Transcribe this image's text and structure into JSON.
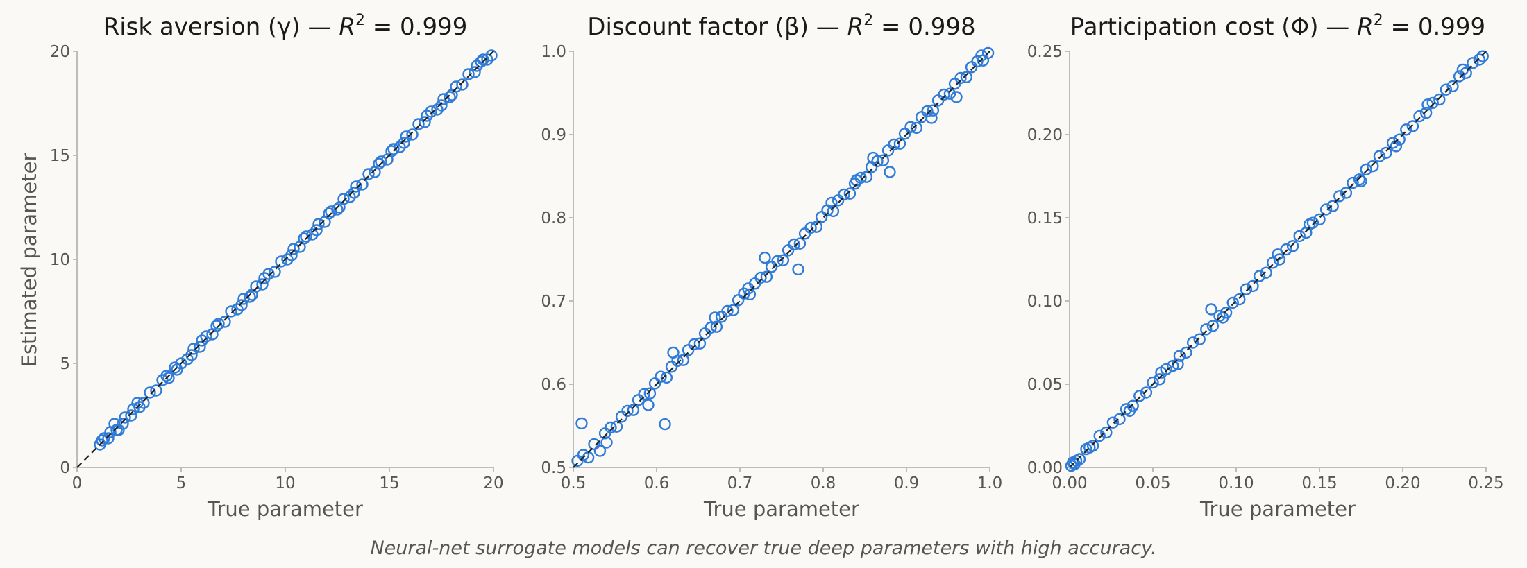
{
  "figure": {
    "caption": "Neural-net surrogate models can recover true deep parameters with high accuracy.",
    "marker_color": "#2f7bd8",
    "identity_line_color": "#222222",
    "background": "#faf9f6"
  },
  "chart_data": [
    {
      "type": "scatter",
      "title_main": "Risk aversion (γ) — ",
      "r2_label": "R",
      "r2_sup": "2",
      "r2_value": " = 0.999",
      "xlabel": "True parameter",
      "ylabel": "Estimated parameter",
      "xlim": [
        0,
        20
      ],
      "ylim": [
        0,
        20
      ],
      "xticks": [
        0,
        5,
        10,
        15,
        20
      ],
      "yticks": [
        0,
        5,
        10,
        15,
        20
      ],
      "xtick_labels": [
        "0",
        "5",
        "10",
        "15",
        "20"
      ],
      "ytick_labels": [
        "0",
        "5",
        "10",
        "15",
        "20"
      ],
      "identity_line": true,
      "grid": false,
      "x": [
        1.1,
        1.3,
        1.5,
        1.8,
        2.0,
        2.3,
        2.6,
        2.9,
        3.2,
        3.5,
        3.8,
        4.1,
        4.4,
        4.7,
        5.0,
        5.3,
        5.6,
        5.9,
        6.2,
        6.5,
        6.8,
        7.1,
        7.4,
        7.7,
        8.0,
        8.3,
        8.6,
        8.9,
        9.2,
        9.5,
        9.8,
        10.1,
        10.4,
        10.7,
        11.0,
        11.3,
        11.6,
        11.9,
        12.2,
        12.5,
        12.8,
        13.1,
        13.4,
        13.7,
        14.0,
        14.3,
        14.6,
        14.9,
        15.2,
        15.5,
        15.8,
        16.1,
        16.4,
        16.7,
        17.0,
        17.3,
        17.6,
        17.9,
        18.2,
        18.5,
        18.8,
        19.1,
        19.4,
        19.7,
        1.6,
        2.2,
        3.0,
        4.3,
        5.5,
        6.7,
        7.9,
        9.0,
        10.3,
        11.5,
        12.1,
        13.3,
        14.5,
        15.7,
        16.8,
        18.0,
        19.2,
        19.9,
        1.2,
        1.9,
        2.7,
        4.8,
        6.0,
        8.4,
        10.9,
        12.6,
        15.1,
        17.5,
        19.5
      ],
      "y": [
        1.1,
        1.4,
        1.4,
        2.1,
        1.8,
        2.4,
        2.5,
        3.1,
        3.1,
        3.6,
        3.7,
        4.2,
        4.3,
        4.8,
        5.0,
        5.2,
        5.7,
        5.8,
        6.3,
        6.4,
        6.9,
        7.0,
        7.5,
        7.6,
        8.1,
        8.2,
        8.7,
        8.8,
        9.3,
        9.4,
        9.9,
        10.0,
        10.5,
        10.6,
        11.1,
        11.2,
        11.7,
        11.8,
        12.3,
        12.4,
        12.9,
        13.0,
        13.5,
        13.6,
        14.1,
        14.2,
        14.7,
        14.8,
        15.3,
        15.4,
        15.9,
        16.0,
        16.5,
        16.6,
        17.1,
        17.2,
        17.7,
        17.8,
        18.3,
        18.4,
        18.9,
        19.0,
        19.5,
        19.6,
        1.7,
        2.1,
        2.9,
        4.4,
        5.4,
        6.8,
        7.8,
        9.1,
        10.2,
        11.4,
        12.2,
        13.2,
        14.6,
        15.6,
        16.9,
        17.9,
        19.3,
        19.8,
        1.3,
        1.8,
        2.8,
        4.7,
        6.1,
        8.3,
        11.0,
        12.5,
        15.2,
        17.4,
        19.6
      ]
    },
    {
      "type": "scatter",
      "title_main": "Discount factor (β) — ",
      "r2_label": "R",
      "r2_sup": "2",
      "r2_value": " = 0.998",
      "xlabel": "True parameter",
      "ylabel": "",
      "xlim": [
        0.5,
        1.0
      ],
      "ylim": [
        0.5,
        1.0
      ],
      "xticks": [
        0.5,
        0.6,
        0.7,
        0.8,
        0.9,
        1.0
      ],
      "yticks": [
        0.5,
        0.6,
        0.7,
        0.8,
        0.9,
        1.0
      ],
      "xtick_labels": [
        "0.5",
        "0.6",
        "0.7",
        "0.8",
        "0.9",
        "1.0"
      ],
      "ytick_labels": [
        "0.5",
        "0.6",
        "0.7",
        "0.8",
        "0.9",
        "1.0"
      ],
      "identity_line": true,
      "grid": false,
      "x": [
        0.505,
        0.512,
        0.518,
        0.525,
        0.532,
        0.538,
        0.545,
        0.552,
        0.558,
        0.565,
        0.572,
        0.578,
        0.585,
        0.592,
        0.598,
        0.605,
        0.612,
        0.618,
        0.625,
        0.632,
        0.638,
        0.645,
        0.652,
        0.658,
        0.665,
        0.672,
        0.678,
        0.685,
        0.692,
        0.698,
        0.705,
        0.712,
        0.718,
        0.725,
        0.732,
        0.738,
        0.745,
        0.752,
        0.758,
        0.765,
        0.772,
        0.778,
        0.785,
        0.792,
        0.798,
        0.805,
        0.812,
        0.818,
        0.825,
        0.832,
        0.838,
        0.845,
        0.852,
        0.858,
        0.865,
        0.872,
        0.878,
        0.885,
        0.892,
        0.898,
        0.905,
        0.912,
        0.918,
        0.925,
        0.932,
        0.938,
        0.945,
        0.952,
        0.958,
        0.965,
        0.972,
        0.978,
        0.985,
        0.992,
        0.998,
        0.51,
        0.61,
        0.62,
        0.77,
        0.88,
        0.96,
        0.54,
        0.59,
        0.67,
        0.71,
        0.73,
        0.81,
        0.84,
        0.86,
        0.93,
        0.99
      ],
      "y": [
        0.508,
        0.515,
        0.512,
        0.528,
        0.52,
        0.541,
        0.548,
        0.549,
        0.561,
        0.568,
        0.569,
        0.581,
        0.588,
        0.589,
        0.601,
        0.609,
        0.608,
        0.621,
        0.628,
        0.629,
        0.641,
        0.648,
        0.649,
        0.661,
        0.668,
        0.669,
        0.681,
        0.688,
        0.689,
        0.701,
        0.709,
        0.708,
        0.721,
        0.728,
        0.729,
        0.741,
        0.748,
        0.749,
        0.761,
        0.768,
        0.769,
        0.781,
        0.788,
        0.789,
        0.801,
        0.809,
        0.808,
        0.821,
        0.828,
        0.829,
        0.841,
        0.848,
        0.849,
        0.861,
        0.868,
        0.869,
        0.881,
        0.888,
        0.889,
        0.901,
        0.909,
        0.908,
        0.921,
        0.928,
        0.929,
        0.941,
        0.948,
        0.949,
        0.961,
        0.968,
        0.969,
        0.981,
        0.988,
        0.989,
        0.998,
        0.553,
        0.552,
        0.638,
        0.738,
        0.855,
        0.945,
        0.53,
        0.575,
        0.68,
        0.715,
        0.752,
        0.818,
        0.845,
        0.872,
        0.92,
        0.995
      ]
    },
    {
      "type": "scatter",
      "title_main": "Participation cost (Φ) — ",
      "r2_label": "R",
      "r2_sup": "2",
      "r2_value": " = 0.999",
      "xlabel": "True parameter",
      "ylabel": "",
      "xlim": [
        0.0,
        0.25
      ],
      "ylim": [
        0.0,
        0.25
      ],
      "xticks": [
        0.0,
        0.05,
        0.1,
        0.15,
        0.2,
        0.25
      ],
      "yticks": [
        0.0,
        0.05,
        0.1,
        0.15,
        0.2,
        0.25
      ],
      "xtick_labels": [
        "0.00",
        "0.05",
        "0.10",
        "0.15",
        "0.20",
        "0.25"
      ],
      "ytick_labels": [
        "0.00",
        "0.05",
        "0.10",
        "0.15",
        "0.20",
        "0.25"
      ],
      "identity_line": true,
      "grid": false,
      "x": [
        0.001,
        0.002,
        0.003,
        0.004,
        0.006,
        0.01,
        0.014,
        0.018,
        0.022,
        0.026,
        0.03,
        0.034,
        0.038,
        0.042,
        0.046,
        0.05,
        0.054,
        0.058,
        0.062,
        0.066,
        0.07,
        0.074,
        0.078,
        0.082,
        0.086,
        0.09,
        0.094,
        0.098,
        0.102,
        0.106,
        0.11,
        0.114,
        0.118,
        0.122,
        0.126,
        0.13,
        0.134,
        0.138,
        0.142,
        0.146,
        0.15,
        0.154,
        0.158,
        0.162,
        0.166,
        0.17,
        0.174,
        0.178,
        0.182,
        0.186,
        0.19,
        0.194,
        0.198,
        0.202,
        0.206,
        0.21,
        0.214,
        0.218,
        0.222,
        0.226,
        0.23,
        0.234,
        0.238,
        0.242,
        0.246,
        0.248,
        0.012,
        0.085,
        0.055,
        0.065,
        0.125,
        0.175,
        0.215,
        0.036,
        0.092,
        0.144,
        0.196,
        0.236
      ],
      "y": [
        0.001,
        0.003,
        0.002,
        0.004,
        0.005,
        0.011,
        0.013,
        0.019,
        0.021,
        0.027,
        0.029,
        0.035,
        0.037,
        0.043,
        0.045,
        0.051,
        0.053,
        0.059,
        0.061,
        0.067,
        0.069,
        0.075,
        0.077,
        0.083,
        0.085,
        0.091,
        0.093,
        0.099,
        0.101,
        0.107,
        0.109,
        0.115,
        0.117,
        0.123,
        0.125,
        0.131,
        0.133,
        0.139,
        0.141,
        0.147,
        0.149,
        0.155,
        0.157,
        0.163,
        0.165,
        0.171,
        0.173,
        0.179,
        0.181,
        0.187,
        0.189,
        0.195,
        0.197,
        0.203,
        0.205,
        0.211,
        0.213,
        0.219,
        0.221,
        0.227,
        0.229,
        0.235,
        0.237,
        0.243,
        0.245,
        0.247,
        0.012,
        0.095,
        0.057,
        0.062,
        0.128,
        0.172,
        0.218,
        0.034,
        0.09,
        0.146,
        0.193,
        0.239
      ]
    }
  ]
}
